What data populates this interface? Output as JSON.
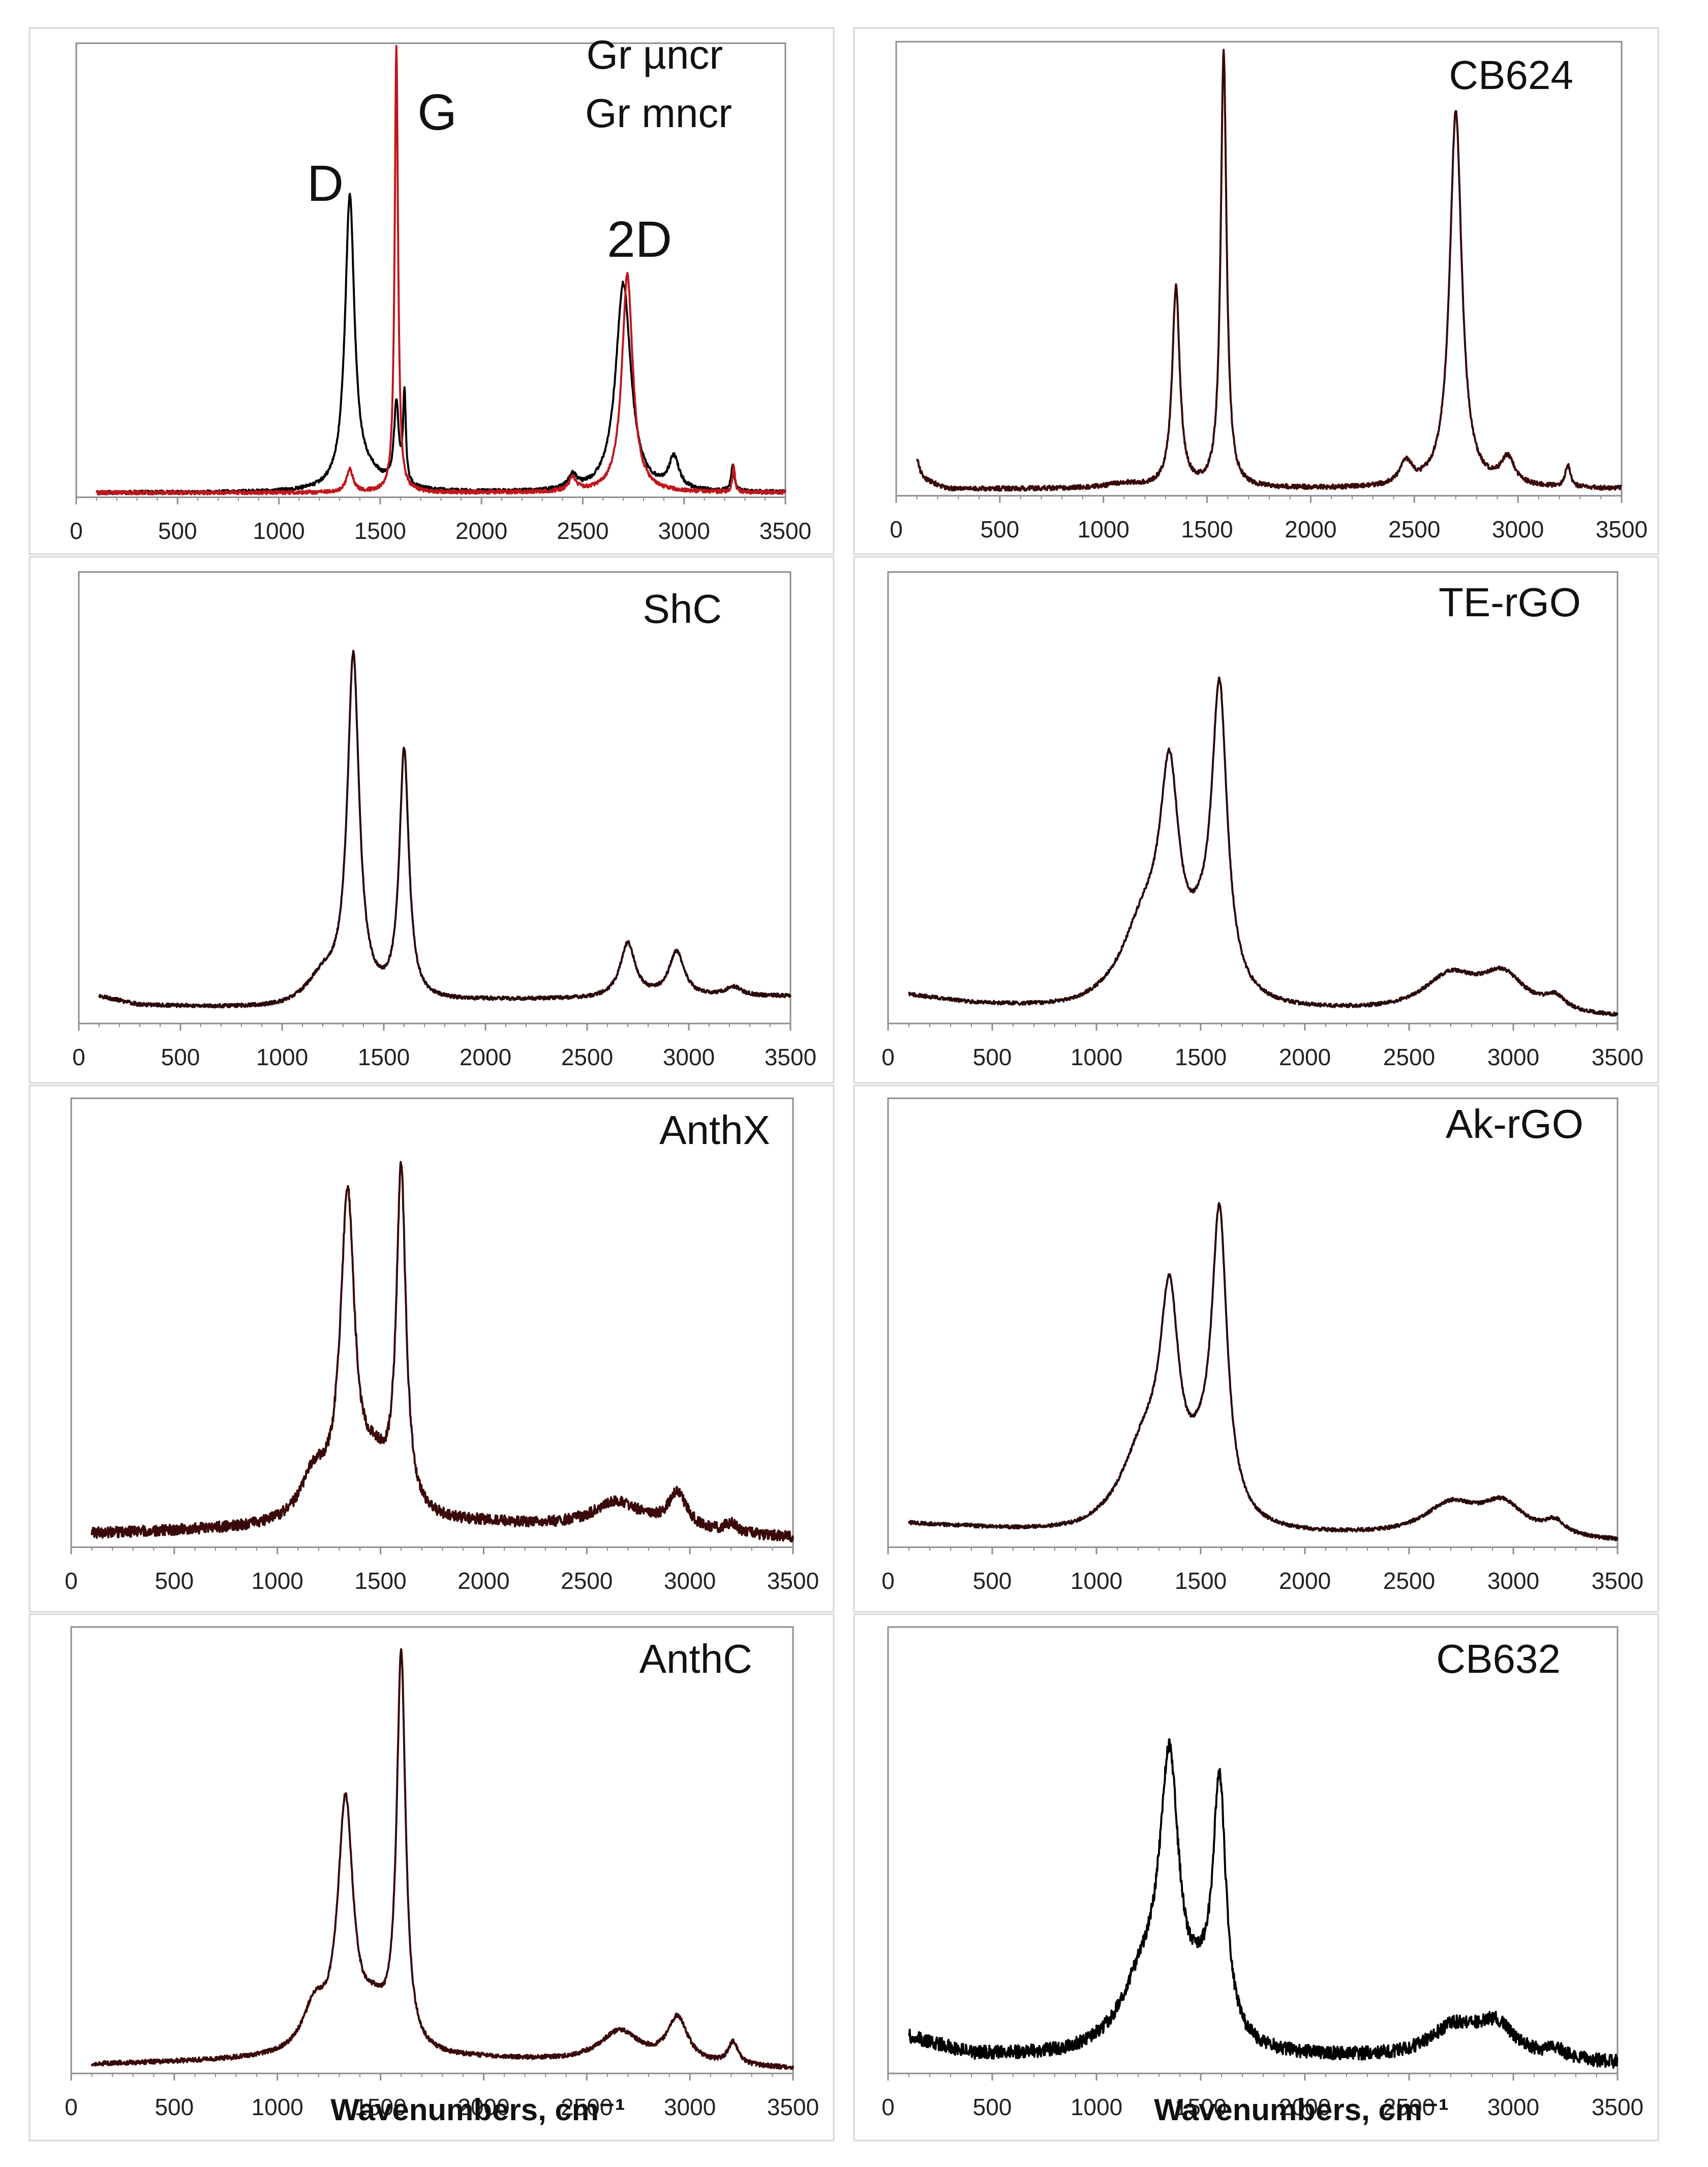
{
  "chart_data": [
    {
      "type": "line",
      "title": "",
      "xlabel": "",
      "ylabel": "",
      "xlim": [
        0,
        3500
      ],
      "x_ticks": [
        "0",
        "500",
        "1000",
        "1500",
        "2000",
        "2500",
        "3000",
        "3500"
      ],
      "legend": [
        {
          "name": "Gr µncr",
          "color": "#000000"
        },
        {
          "name": "Gr mncr",
          "color": "#c0161c"
        }
      ],
      "annotations": [
        {
          "text": "D",
          "x": 1250
        },
        {
          "text": "G",
          "x": 1800
        },
        {
          "text": "2D",
          "x": 2700
        }
      ],
      "series": [
        {
          "name": "Gr µncr",
          "color": "#000000",
          "noise": 0.004,
          "baseline": [
            [
              100,
              0.01
            ],
            [
              1200,
              0.01
            ],
            [
              3500,
              0.01
            ]
          ],
          "peaks": [
            [
              1350,
              0.64,
              28
            ],
            [
              1580,
              0.18,
              14
            ],
            [
              1620,
              0.2,
              8
            ],
            [
              2700,
              0.46,
              45
            ],
            [
              2950,
              0.07,
              30
            ],
            [
              3240,
              0.06,
              9
            ],
            [
              1450,
              0.03,
              100
            ],
            [
              2450,
              0.03,
              25
            ]
          ]
        },
        {
          "name": "Gr mncr",
          "color": "#c0161c",
          "noise": 0.004,
          "baseline": [
            [
              100,
              0.01
            ],
            [
              3500,
              0.01
            ]
          ],
          "peaks": [
            [
              1580,
              0.98,
              10
            ],
            [
              2720,
              0.48,
              32
            ],
            [
              2450,
              0.03,
              22
            ],
            [
              3245,
              0.06,
              7
            ],
            [
              1350,
              0.05,
              20
            ]
          ]
        }
      ]
    },
    {
      "type": "line",
      "title": "CB624",
      "xlabel": "",
      "ylabel": "",
      "xlim": [
        0,
        3500
      ],
      "x_ticks": [
        "0",
        "500",
        "1000",
        "1500",
        "2000",
        "2500",
        "3000",
        "3500"
      ],
      "series": [
        {
          "name": "CB624",
          "color": "#3a0808",
          "noise": 0.005,
          "baseline": [
            [
              100,
              0.04
            ],
            [
              250,
              0.015
            ],
            [
              3500,
              0.015
            ]
          ],
          "peaks": [
            [
              1350,
              0.44,
              22
            ],
            [
              1580,
              0.96,
              17
            ],
            [
              2700,
              0.83,
              35
            ],
            [
              2460,
              0.05,
              35
            ],
            [
              2950,
              0.06,
              40
            ],
            [
              3240,
              0.05,
              15
            ],
            [
              1100,
              0.01,
              100
            ],
            [
              100,
              0.04,
              15
            ]
          ]
        }
      ]
    },
    {
      "type": "line",
      "title": "ShC",
      "xlabel": "",
      "ylabel": "",
      "xlim": [
        0,
        3500
      ],
      "x_ticks": [
        "0",
        "500",
        "1000",
        "1500",
        "2000",
        "2500",
        "3000",
        "3500"
      ],
      "series": [
        {
          "name": "ShC",
          "color": "#2a0808",
          "noise": 0.004,
          "baseline": [
            [
              100,
              0.06
            ],
            [
              300,
              0.04
            ],
            [
              1000,
              0.03
            ],
            [
              2000,
              0.05
            ],
            [
              3500,
              0.06
            ]
          ],
          "peaks": [
            [
              1350,
              0.76,
              35
            ],
            [
              1600,
              0.55,
              28
            ],
            [
              1200,
              0.06,
              100
            ],
            [
              2700,
              0.12,
              45
            ],
            [
              2940,
              0.1,
              45
            ],
            [
              3220,
              0.02,
              50
            ]
          ]
        }
      ]
    },
    {
      "type": "line",
      "title": "TE-rGO",
      "xlabel": "",
      "ylabel": "",
      "xlim": [
        0,
        3500
      ],
      "x_ticks": [
        "0",
        "500",
        "1000",
        "1500",
        "2000",
        "2500",
        "3000",
        "3500"
      ],
      "series": [
        {
          "name": "TE-rGO",
          "color": "#2a0808",
          "noise": 0.004,
          "baseline": [
            [
              100,
              0.06
            ],
            [
              400,
              0.04
            ],
            [
              900,
              0.02
            ],
            [
              2200,
              0.02
            ],
            [
              3500,
              0.01
            ]
          ],
          "peaks": [
            [
              1350,
              0.44,
              55
            ],
            [
              1230,
              0.18,
              140
            ],
            [
              1590,
              0.66,
              45
            ],
            [
              1500,
              0.08,
              80
            ],
            [
              2700,
              0.08,
              160
            ],
            [
              2950,
              0.08,
              130
            ],
            [
              3200,
              0.03,
              60
            ]
          ]
        }
      ]
    },
    {
      "type": "line",
      "title": "AnthX",
      "xlabel": "",
      "ylabel": "",
      "xlim": [
        0,
        3500
      ],
      "x_ticks": [
        "0",
        "500",
        "1000",
        "1500",
        "2000",
        "2500",
        "3000",
        "3500"
      ],
      "series": [
        {
          "name": "AnthX",
          "color": "#3a0808",
          "noise": 0.012,
          "baseline": [
            [
              100,
              0.03
            ],
            [
              1000,
              0.04
            ],
            [
              2000,
              0.05
            ],
            [
              3500,
              0.02
            ]
          ],
          "peaks": [
            [
              1340,
              0.7,
              42
            ],
            [
              1600,
              0.76,
              28
            ],
            [
              1180,
              0.1,
              80
            ],
            [
              1470,
              0.1,
              80
            ],
            [
              2650,
              0.06,
              150
            ],
            [
              2940,
              0.08,
              55
            ],
            [
              3200,
              0.02,
              40
            ]
          ]
        }
      ]
    },
    {
      "type": "line",
      "title": "Ak-rGO",
      "xlabel": "",
      "ylabel": "",
      "xlim": [
        0,
        3500
      ],
      "x_ticks": [
        "0",
        "500",
        "1000",
        "1500",
        "2000",
        "2500",
        "3000",
        "3500"
      ],
      "series": [
        {
          "name": "Ak-rGO",
          "color": "#2a0808",
          "noise": 0.004,
          "baseline": [
            [
              100,
              0.05
            ],
            [
              400,
              0.04
            ],
            [
              900,
              0.02
            ],
            [
              2200,
              0.02
            ],
            [
              3500,
              0.01
            ]
          ],
          "peaks": [
            [
              1350,
              0.44,
              55
            ],
            [
              1230,
              0.18,
              140
            ],
            [
              1590,
              0.66,
              45
            ],
            [
              1500,
              0.08,
              80
            ],
            [
              2700,
              0.07,
              160
            ],
            [
              2950,
              0.07,
              130
            ],
            [
              3200,
              0.03,
              60
            ]
          ]
        }
      ]
    },
    {
      "type": "line",
      "title": "AnthC",
      "xlabel": "Wavenumbers, cm⁻¹",
      "ylabel": "",
      "xlim": [
        0,
        3500
      ],
      "x_ticks": [
        "0",
        "500",
        "1000",
        "1500",
        "2000",
        "2500",
        "3000",
        "3500"
      ],
      "series": [
        {
          "name": "AnthC",
          "color": "#3a0808",
          "noise": 0.005,
          "baseline": [
            [
              100,
              0.02
            ],
            [
              1000,
              0.03
            ],
            [
              2000,
              0.03
            ],
            [
              3500,
              0.01
            ]
          ],
          "peaks": [
            [
              1330,
              0.55,
              45
            ],
            [
              1600,
              0.88,
              26
            ],
            [
              1180,
              0.1,
              70
            ],
            [
              1470,
              0.08,
              80
            ],
            [
              2660,
              0.07,
              120
            ],
            [
              2940,
              0.1,
              60
            ],
            [
              3210,
              0.05,
              30
            ]
          ]
        }
      ]
    },
    {
      "type": "line",
      "title": "CB632",
      "xlabel": "Wavenumbers, cm⁻¹",
      "ylabel": "",
      "xlim": [
        0,
        3500
      ],
      "x_ticks": [
        "0",
        "500",
        "1000",
        "1500",
        "2000",
        "2500",
        "3000",
        "3500"
      ],
      "series": [
        {
          "name": "CB632",
          "color": "#000000",
          "noise": 0.015,
          "baseline": [
            [
              100,
              0.08
            ],
            [
              400,
              0.04
            ],
            [
              900,
              0.03
            ],
            [
              2200,
              0.03
            ],
            [
              3500,
              0.02
            ]
          ],
          "peaks": [
            [
              1350,
              0.58,
              55
            ],
            [
              1230,
              0.16,
              140
            ],
            [
              1590,
              0.56,
              38
            ],
            [
              1500,
              0.08,
              80
            ],
            [
              2720,
              0.07,
              150
            ],
            [
              2920,
              0.07,
              110
            ],
            [
              3200,
              0.02,
              60
            ]
          ]
        }
      ]
    }
  ]
}
